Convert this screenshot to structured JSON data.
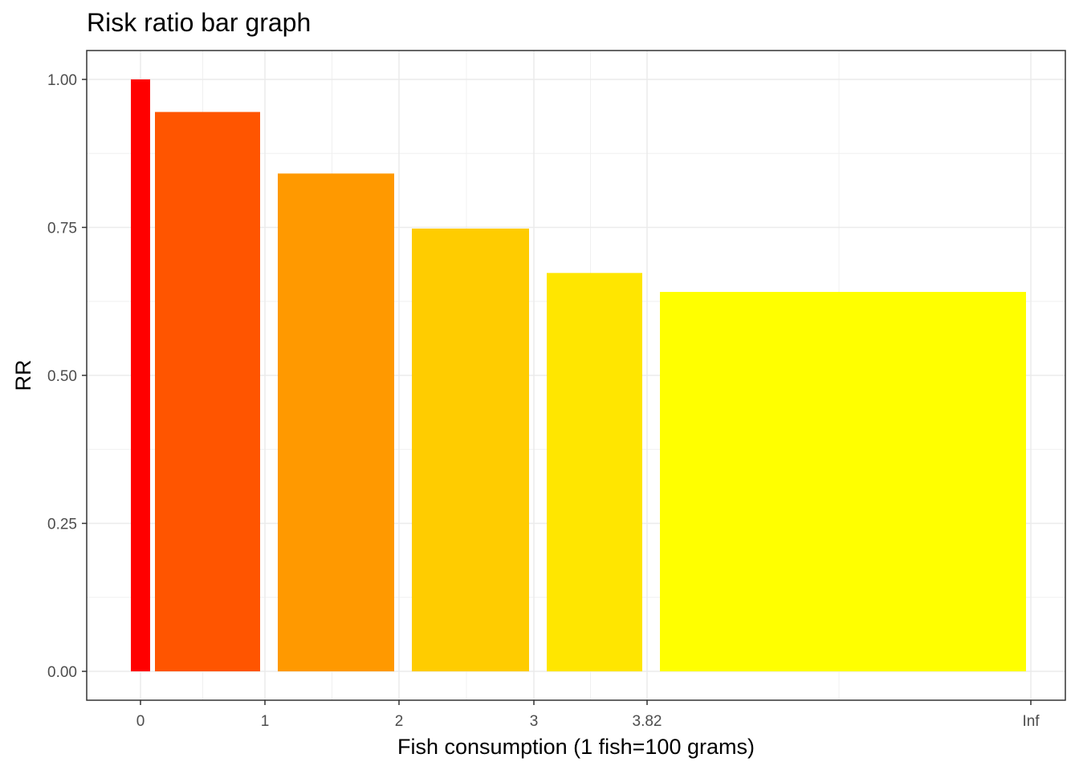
{
  "chart_data": {
    "type": "bar",
    "title": "Risk ratio bar graph",
    "xlabel": "Fish consumption (1 fish=100 grams)",
    "ylabel": "RR",
    "ylim": [
      0,
      1
    ],
    "y_ticks": [
      "0.00",
      "0.25",
      "0.50",
      "0.75",
      "1.00"
    ],
    "y_tick_values": [
      0,
      0.25,
      0.5,
      0.75,
      1.0
    ],
    "x_ticks": [
      "0",
      "1",
      "2",
      "3",
      "3.82",
      "Inf"
    ],
    "grid": true,
    "legend": "none",
    "bars": [
      {
        "from": "0",
        "to": "0",
        "value": 1.0,
        "color": "#FF0000"
      },
      {
        "from": "0",
        "to": "1",
        "value": 0.945,
        "color": "#FF5500"
      },
      {
        "from": "1",
        "to": "2",
        "value": 0.841,
        "color": "#FF9900"
      },
      {
        "from": "2",
        "to": "3",
        "value": 0.748,
        "color": "#FFCC00"
      },
      {
        "from": "3",
        "to": "3.82",
        "value": 0.673,
        "color": "#FFE600"
      },
      {
        "from": "3.82",
        "to": "Inf",
        "value": 0.641,
        "color": "#FFFF00"
      }
    ]
  }
}
